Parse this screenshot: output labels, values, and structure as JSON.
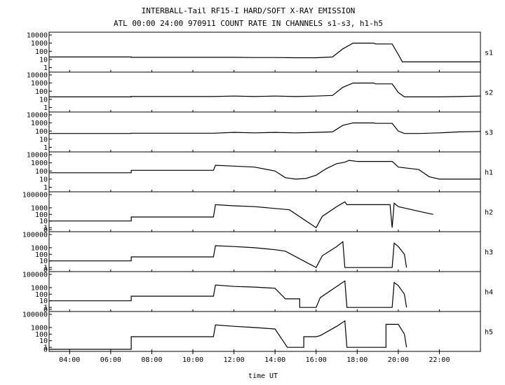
{
  "chart_data": {
    "type": "line",
    "title": "INTERBALL-Tail RF15-I HARD/SOFT X-RAY EMISSION",
    "subtitle": "ATL 00:00 24:00 970911  COUNT RATE IN CHANNELS s1-s3, h1-h5",
    "xlabel": "time UT",
    "x_tick_labels": [
      "04:00",
      "06:00",
      "08:00",
      "10:00",
      "12:00",
      "14:00",
      "16:00",
      "18:00",
      "20:00",
      "22:00"
    ],
    "x_tick_hours": [
      4,
      6,
      8,
      10,
      12,
      14,
      16,
      18,
      20,
      22
    ],
    "xlim": [
      3.0,
      24.0
    ],
    "y_scale": "log",
    "grid": false,
    "panels": [
      {
        "name": "s1",
        "ylim": [
          0.5,
          10000
        ],
        "y_tick_labels": [
          "10000",
          "1000",
          "100",
          "10",
          "1"
        ],
        "y_tick_values": [
          10000,
          1000,
          100,
          10,
          1
        ],
        "series": [
          [
            3,
            20
          ],
          [
            7,
            20
          ],
          [
            7,
            18
          ],
          [
            10.9,
            18
          ],
          [
            11.0,
            18
          ],
          [
            12,
            18
          ],
          [
            13,
            17
          ],
          [
            14,
            17
          ],
          [
            15,
            16
          ],
          [
            16,
            16
          ],
          [
            16.8,
            20
          ],
          [
            17.3,
            200
          ],
          [
            17.8,
            1000
          ],
          [
            18.8,
            1000
          ],
          [
            18.9,
            800
          ],
          [
            19.7,
            800
          ],
          [
            20,
            40
          ],
          [
            20.2,
            5
          ],
          [
            21,
            5
          ],
          [
            22,
            5
          ],
          [
            23,
            5
          ],
          [
            24,
            5
          ]
        ]
      },
      {
        "name": "s2",
        "ylim": [
          0.5,
          10000
        ],
        "y_tick_labels": [
          "10000",
          "1000",
          "100",
          "10",
          "1"
        ],
        "y_tick_values": [
          10000,
          1000,
          100,
          10,
          1
        ],
        "series": [
          [
            3,
            20
          ],
          [
            7,
            20
          ],
          [
            7,
            22
          ],
          [
            11,
            22
          ],
          [
            12,
            25
          ],
          [
            13,
            22
          ],
          [
            14,
            25
          ],
          [
            15,
            22
          ],
          [
            16,
            25
          ],
          [
            16.8,
            30
          ],
          [
            17.3,
            300
          ],
          [
            17.8,
            1000
          ],
          [
            18.8,
            1000
          ],
          [
            18.9,
            800
          ],
          [
            19.7,
            800
          ],
          [
            20,
            70
          ],
          [
            20.3,
            20
          ],
          [
            21,
            20
          ],
          [
            22,
            20
          ],
          [
            23,
            22
          ],
          [
            24,
            25
          ]
        ]
      },
      {
        "name": "s3",
        "ylim": [
          0.5,
          10000
        ],
        "y_tick_labels": [
          "10000",
          "1000",
          "100",
          "10",
          "1"
        ],
        "y_tick_values": [
          10000,
          1000,
          100,
          10,
          1
        ],
        "series": [
          [
            3,
            50
          ],
          [
            7,
            50
          ],
          [
            7,
            55
          ],
          [
            11,
            55
          ],
          [
            12,
            70
          ],
          [
            13,
            60
          ],
          [
            14,
            70
          ],
          [
            15,
            60
          ],
          [
            16,
            70
          ],
          [
            16.8,
            80
          ],
          [
            17.3,
            500
          ],
          [
            17.8,
            1000
          ],
          [
            18.8,
            1000
          ],
          [
            18.9,
            900
          ],
          [
            19.7,
            900
          ],
          [
            20,
            100
          ],
          [
            20.3,
            50
          ],
          [
            21,
            50
          ],
          [
            22,
            60
          ],
          [
            23,
            80
          ],
          [
            24,
            90
          ]
        ]
      },
      {
        "name": "h1",
        "ylim": [
          0.5,
          10000
        ],
        "y_tick_labels": [
          "10000",
          "1000",
          "100",
          "10",
          "1"
        ],
        "y_tick_values": [
          10000,
          1000,
          100,
          10,
          1
        ],
        "series": [
          [
            3,
            60
          ],
          [
            7,
            60
          ],
          [
            7,
            120
          ],
          [
            11,
            120
          ],
          [
            11.1,
            500
          ],
          [
            12,
            400
          ],
          [
            13,
            300
          ],
          [
            14,
            100
          ],
          [
            14.5,
            15
          ],
          [
            15,
            10
          ],
          [
            15.5,
            12
          ],
          [
            16,
            30
          ],
          [
            16.5,
            200
          ],
          [
            17,
            800
          ],
          [
            17.4,
            1200
          ],
          [
            17.6,
            2000
          ],
          [
            18,
            1500
          ],
          [
            19,
            1500
          ],
          [
            19.7,
            1500
          ],
          [
            20,
            300
          ],
          [
            21,
            150
          ],
          [
            21.5,
            20
          ],
          [
            22,
            10
          ],
          [
            23,
            10
          ],
          [
            24,
            10
          ]
        ]
      },
      {
        "name": "h2",
        "ylim": [
          0.5,
          100000
        ],
        "y_tick_labels": [
          "100000",
          "1000",
          "100",
          "10",
          "1",
          "0"
        ],
        "y_tick_values": [
          100000,
          1000,
          100,
          10,
          1,
          0
        ],
        "series": [
          [
            3,
            10
          ],
          [
            7,
            10
          ],
          [
            7,
            40
          ],
          [
            11,
            40
          ],
          [
            11.1,
            3000
          ],
          [
            12,
            2000
          ],
          [
            13,
            1500
          ],
          [
            14,
            800
          ],
          [
            14.7,
            500
          ],
          [
            16,
            1
          ],
          [
            16.3,
            50
          ],
          [
            17,
            1500
          ],
          [
            17.4,
            8000
          ],
          [
            17.5,
            3000
          ],
          [
            19.6,
            3000
          ],
          [
            19.7,
            1
          ],
          [
            19.8,
            5000
          ],
          [
            20,
            1500
          ],
          [
            21,
            300
          ],
          [
            21.7,
            100
          ]
        ]
      },
      {
        "name": "h3",
        "ylim": [
          0.5,
          100000
        ],
        "y_tick_labels": [
          "100000",
          "1000",
          "100",
          "10",
          "1",
          "0"
        ],
        "y_tick_values": [
          100000,
          1000,
          100,
          10,
          1,
          0
        ],
        "series": [
          [
            3,
            10
          ],
          [
            7,
            10
          ],
          [
            7,
            40
          ],
          [
            11,
            40
          ],
          [
            11.1,
            2000
          ],
          [
            12,
            1500
          ],
          [
            13,
            1000
          ],
          [
            14,
            500
          ],
          [
            14.5,
            300
          ],
          [
            16,
            1
          ],
          [
            16.3,
            60
          ],
          [
            17,
            1500
          ],
          [
            17.3,
            8000
          ],
          [
            17.4,
            1
          ],
          [
            19.7,
            1
          ],
          [
            19.8,
            5000
          ],
          [
            20,
            1500
          ],
          [
            20.3,
            100
          ],
          [
            20.4,
            1
          ]
        ]
      },
      {
        "name": "h4",
        "ylim": [
          0.5,
          100000
        ],
        "y_tick_labels": [
          "100000",
          "1000",
          "100",
          "10",
          "1",
          "0"
        ],
        "y_tick_values": [
          100000,
          1000,
          100,
          10,
          1,
          0
        ],
        "series": [
          [
            3,
            10
          ],
          [
            7,
            10
          ],
          [
            7,
            50
          ],
          [
            11,
            50
          ],
          [
            11.1,
            2500
          ],
          [
            12,
            1500
          ],
          [
            13,
            1200
          ],
          [
            14,
            800
          ],
          [
            14.5,
            20
          ],
          [
            15.2,
            20
          ],
          [
            15.2,
            1
          ],
          [
            16,
            1
          ],
          [
            16.2,
            30
          ],
          [
            17,
            1500
          ],
          [
            17.4,
            10000
          ],
          [
            17.5,
            1
          ],
          [
            19.7,
            1
          ],
          [
            19.8,
            6000
          ],
          [
            20,
            2000
          ],
          [
            20.3,
            100
          ],
          [
            20.4,
            1
          ]
        ]
      },
      {
        "name": "h5",
        "ylim": [
          0.5,
          100000
        ],
        "y_tick_labels": [
          "100000",
          "1000",
          "100",
          "10",
          "1",
          "0"
        ],
        "y_tick_values": [
          100000,
          1000,
          100,
          10,
          1,
          0
        ],
        "series": [
          [
            3,
            0.5
          ],
          [
            7,
            0.5
          ],
          [
            7,
            40
          ],
          [
            11,
            40
          ],
          [
            11.1,
            2500
          ],
          [
            12,
            1500
          ],
          [
            13,
            1000
          ],
          [
            14,
            600
          ],
          [
            14.6,
            1
          ],
          [
            15.4,
            1
          ],
          [
            15.4,
            40
          ],
          [
            16,
            40
          ],
          [
            16.2,
            60
          ],
          [
            17,
            1500
          ],
          [
            17.4,
            10000
          ],
          [
            17.5,
            1
          ],
          [
            19.4,
            1
          ],
          [
            19.4,
            3000
          ],
          [
            20,
            3000
          ],
          [
            20.3,
            100
          ],
          [
            20.4,
            1
          ]
        ]
      }
    ]
  }
}
